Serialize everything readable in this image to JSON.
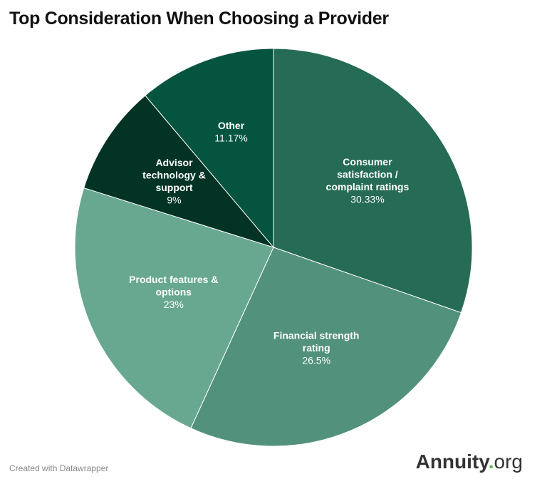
{
  "page": {
    "title": "Top Consideration When Choosing a Provider",
    "credit": "Created with Datawrapper",
    "brand": {
      "name": "Annuity",
      "dot": ".",
      "tld": "org",
      "dot_color": "#5ab44a"
    }
  },
  "chart_data": {
    "type": "pie",
    "title": "Top Consideration When Choosing a Provider",
    "slices": [
      {
        "label": [
          "Consumer",
          "satisfaction /",
          "complaint ratings"
        ],
        "value": 30.33,
        "display": "30.33%",
        "color": "#266b55"
      },
      {
        "label": [
          "Financial strength",
          "rating"
        ],
        "value": 26.5,
        "display": "26.5%",
        "color": "#52917b"
      },
      {
        "label": [
          "Product features &",
          "options"
        ],
        "value": 23,
        "display": "23%",
        "color": "#68a891"
      },
      {
        "label": [
          "Advisor",
          "technology &",
          "support"
        ],
        "value": 9,
        "display": "9%",
        "color": "#033324"
      },
      {
        "label": [
          "Other"
        ],
        "value": 11.17,
        "display": "11.17%",
        "color": "#045440"
      }
    ]
  }
}
